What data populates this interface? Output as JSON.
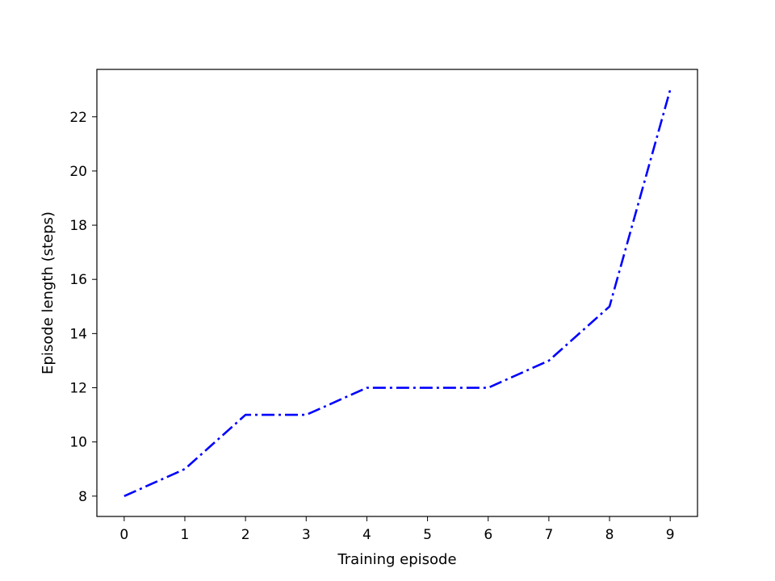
{
  "chart_data": {
    "type": "line",
    "title": "",
    "xlabel": "Training episode",
    "ylabel": "Episode length (steps)",
    "x": [
      0,
      1,
      2,
      3,
      4,
      5,
      6,
      7,
      8,
      9
    ],
    "series": [
      {
        "values": [
          8,
          9,
          11,
          11,
          12,
          12,
          12,
          13,
          15,
          23
        ],
        "color": "#0000ff",
        "linestyle": "dash-dot"
      }
    ],
    "xlim": [
      -0.45,
      9.45
    ],
    "ylim": [
      7.25,
      23.75
    ],
    "xticks": [
      0,
      1,
      2,
      3,
      4,
      5,
      6,
      7,
      8,
      9
    ],
    "xtick_labels": [
      "0",
      "1",
      "2",
      "3",
      "4",
      "5",
      "6",
      "7",
      "8",
      "9"
    ],
    "yticks": [
      8,
      10,
      12,
      14,
      16,
      18,
      20,
      22
    ],
    "ytick_labels": [
      "8",
      "10",
      "12",
      "14",
      "16",
      "18",
      "20",
      "22"
    ],
    "grid": false,
    "legend": "none"
  }
}
